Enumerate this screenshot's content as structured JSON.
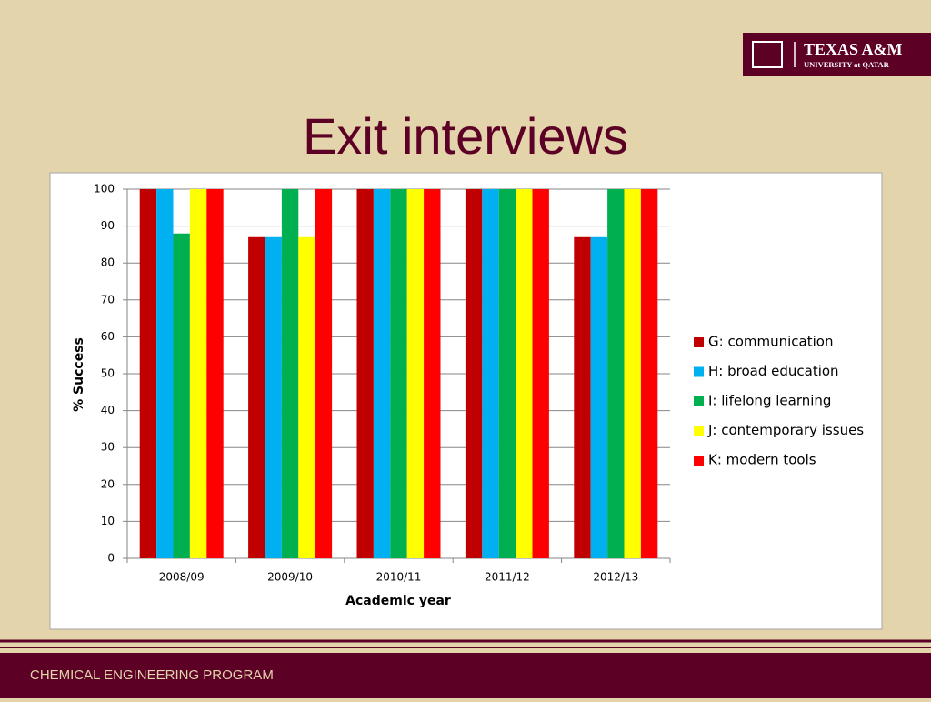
{
  "logo": {
    "name": "TEXAS A&M",
    "subname": "UNIVERSITY at QATAR"
  },
  "footer": "CHEMICAL ENGINEERING PROGRAM",
  "chart_data": {
    "type": "bar",
    "title": "Exit interviews",
    "x_label": "Academic year",
    "y_label": "% Success",
    "categories": [
      "2008/09",
      "2009/10",
      "2010/11",
      "2011/12",
      "2012/13"
    ],
    "series": [
      {
        "name": "G: communication",
        "color": "#c00000",
        "values": [
          100,
          87,
          100,
          100,
          87
        ]
      },
      {
        "name": "H: broad education",
        "color": "#00b0f0",
        "values": [
          100,
          87,
          100,
          100,
          87
        ]
      },
      {
        "name": "I: lifelong learning",
        "color": "#00b050",
        "values": [
          88,
          100,
          100,
          100,
          100
        ]
      },
      {
        "name": "J: contemporary issues",
        "color": "#ffff00",
        "values": [
          100,
          87,
          100,
          100,
          100
        ]
      },
      {
        "name": "K: modern tools",
        "color": "#ff0000",
        "values": [
          100,
          100,
          100,
          100,
          100
        ]
      }
    ],
    "ylim": [
      0,
      100
    ],
    "yticks": [
      0,
      10,
      20,
      30,
      40,
      50,
      60,
      70,
      80,
      90,
      100
    ],
    "grid": true,
    "legend": "right"
  }
}
